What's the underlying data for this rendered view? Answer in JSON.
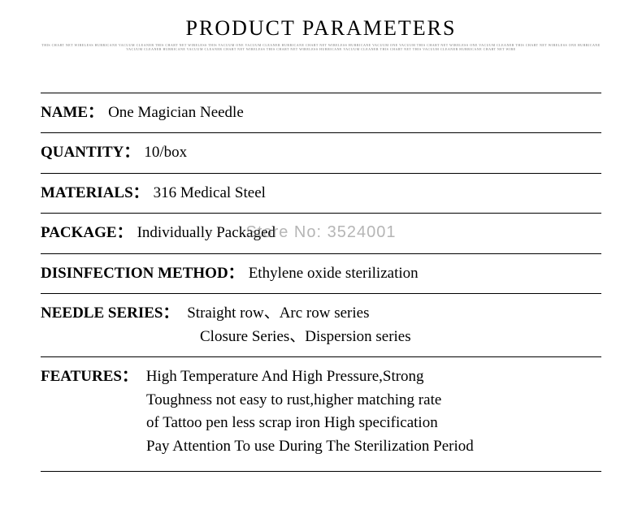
{
  "title": "PRODUCT PARAMETERS",
  "subtitle_noise": "THIS CHART NET WIRELESS HURRICANE VACUUM CLEANER THIS CHART NET WIRELESS THIS VACUUM ONE VACUUM CLEANER HURRICANE CHART NET WIRELESS HURRICANE VACUUM ONE VACUUM THIS CHART NET WIRELESS ONE VACUUM CLEANER THIS CHART NET WIRELESS ONE HURRICANE VACUUM CLEANER HURRICANE VACUUM CLEANER CHART NET WIRELESS THIS CHART NET WIRELESS HURRICANE VACUUM CLEANER THIS CHART NET THIS VACUUM CLEANER HURRICANE CHART NET WIRE",
  "params": {
    "name_label": "NAME：",
    "name_value": "One Magician Needle",
    "quantity_label": "QUANTITY：",
    "quantity_value": "10/box",
    "materials_label": "MATERIALS：",
    "materials_value": "316 Medical Steel",
    "package_label": "PACKAGE：",
    "package_value": "Individually Packaged",
    "disinfection_label": "DISINFECTION METHOD：",
    "disinfection_value": "Ethylene oxide sterilization",
    "needle_series_label": "NEEDLE SERIES：",
    "needle_series_line1": "Straight row、Arc row series",
    "needle_series_line2": "Closure Series、Dispersion series",
    "features_label": "FEATURES：",
    "features_line1": "High Temperature And High Pressure,Strong",
    "features_line2": "Toughness not easy to rust,higher matching rate",
    "features_line3": "of Tattoo pen less scrap iron High specification",
    "features_line4": "Pay Attention To use During The Sterilization Period"
  },
  "watermark": "Store No: 3524001",
  "colors": {
    "text": "#000000",
    "background": "#ffffff",
    "rule": "#000000",
    "watermark": "rgba(120,120,120,0.55)",
    "subtitle": "#777777"
  },
  "typography": {
    "title_fontsize": 26,
    "row_fontsize": 19,
    "font_family": "Georgia, Times New Roman, serif"
  }
}
